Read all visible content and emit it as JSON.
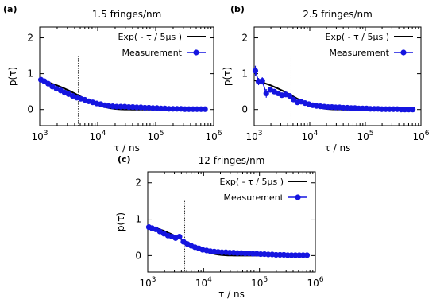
{
  "figure": {
    "chart_data": [
      {
        "type": "scatter",
        "panel_label": "(a)",
        "title": "1.5 fringes/nm",
        "xlabel": "τ / ns",
        "ylabel": "p(τ)",
        "x_scale": "log",
        "xlim": [
          1000,
          1000000
        ],
        "ylim": [
          -0.45,
          2.3
        ],
        "x_ticks": [
          {
            "base": "10",
            "exp": "3"
          },
          {
            "base": "10",
            "exp": "4"
          },
          {
            "base": "10",
            "exp": "5"
          },
          {
            "base": "10",
            "exp": "6"
          }
        ],
        "y_ticks": [
          "0",
          "1",
          "2"
        ],
        "legend_position": "top-right",
        "vline_x": 4600,
        "series": [
          {
            "name": "Exp( - τ / 5μs )",
            "kind": "line",
            "color": "#000000"
          },
          {
            "name": "Measurement",
            "kind": "points",
            "color": "#1515e0",
            "x": [
              1050,
              1200,
              1400,
              1650,
              1950,
              2300,
              2700,
              3150,
              3700,
              4350,
              5100,
              6000,
              7000,
              8200,
              9600,
              11300,
              13200,
              15500,
              18200,
              21300,
              25000,
              29300,
              34400,
              40300,
              47300,
              55500,
              65000,
              76300,
              89400,
              105000,
              123000,
              144000,
              169000,
              198000,
              233000,
              273000,
              320000,
              375000,
              440000,
              516000,
              605000,
              710000
            ],
            "y": [
              0.83,
              0.79,
              0.72,
              0.64,
              0.58,
              0.53,
              0.47,
              0.43,
              0.38,
              0.33,
              0.3,
              0.27,
              0.23,
              0.2,
              0.17,
              0.15,
              0.12,
              0.1,
              0.09,
              0.08,
              0.08,
              0.08,
              0.07,
              0.07,
              0.06,
              0.06,
              0.05,
              0.05,
              0.04,
              0.04,
              0.03,
              0.03,
              0.02,
              0.02,
              0.02,
              0.02,
              0.01,
              0.01,
              0.01,
              0.01,
              0.01,
              0.01
            ]
          }
        ]
      },
      {
        "type": "scatter",
        "panel_label": "(b)",
        "title": "2.5 fringes/nm",
        "xlabel": "τ / ns",
        "ylabel": "p(τ)",
        "x_scale": "log",
        "xlim": [
          1000,
          1000000
        ],
        "ylim": [
          -0.45,
          2.3
        ],
        "x_ticks": [
          {
            "base": "10",
            "exp": "3"
          },
          {
            "base": "10",
            "exp": "4"
          },
          {
            "base": "10",
            "exp": "5"
          },
          {
            "base": "10",
            "exp": "6"
          }
        ],
        "y_ticks": [
          "0",
          "1",
          "2"
        ],
        "legend_position": "top-right",
        "vline_x": 4600,
        "series": [
          {
            "name": "Exp( - τ / 5μs )",
            "kind": "line",
            "color": "#000000"
          },
          {
            "name": "Measurement",
            "kind": "points",
            "color": "#1515e0",
            "x": [
              1050,
              1200,
              1400,
              1650,
              1950,
              2300,
              2700,
              3150,
              3700,
              4350,
              5100,
              6000,
              7000,
              8200,
              9600,
              11300,
              13200,
              15500,
              18200,
              21300,
              25000,
              29300,
              34400,
              40300,
              47300,
              55500,
              65000,
              76300,
              89400,
              105000,
              123000,
              144000,
              169000,
              198000,
              233000,
              273000,
              320000,
              375000,
              440000,
              516000,
              605000,
              710000
            ],
            "y": [
              1.08,
              0.78,
              0.8,
              0.45,
              0.55,
              0.5,
              0.45,
              0.4,
              0.42,
              0.38,
              0.28,
              0.2,
              0.22,
              0.18,
              0.15,
              0.12,
              0.1,
              0.09,
              0.08,
              0.07,
              0.07,
              0.06,
              0.06,
              0.05,
              0.05,
              0.04,
              0.04,
              0.03,
              0.03,
              0.03,
              0.02,
              0.02,
              0.02,
              0.01,
              0.01,
              0.01,
              0.01,
              0.01,
              0.0,
              0.0,
              0.0,
              0.0
            ],
            "err": [
              0.14,
              0.1,
              0.1,
              0.12,
              0.08,
              0.07,
              0.06,
              0.05,
              0.05,
              0.05,
              0.04,
              0.04,
              0.03,
              0.03,
              0.03,
              0.02,
              0.02,
              0.02,
              0.02,
              0.02,
              0.02,
              0.01,
              0.01,
              0.01,
              0.01,
              0.01,
              0.01,
              0.01,
              0.01,
              0.01,
              0.01,
              0.01,
              0.01,
              0.01,
              0.01,
              0.01,
              0.01,
              0.01,
              0.01,
              0.01,
              0.01,
              0.01
            ]
          }
        ]
      },
      {
        "type": "scatter",
        "panel_label": "(c)",
        "title": "12 fringes/nm",
        "xlabel": "τ / ns",
        "ylabel": "p(τ)",
        "x_scale": "log",
        "xlim": [
          1000,
          1000000
        ],
        "ylim": [
          -0.45,
          2.3
        ],
        "x_ticks": [
          {
            "base": "10",
            "exp": "3"
          },
          {
            "base": "10",
            "exp": "4"
          },
          {
            "base": "10",
            "exp": "5"
          },
          {
            "base": "10",
            "exp": "6"
          }
        ],
        "y_ticks": [
          "0",
          "1",
          "2"
        ],
        "legend_position": "top-right",
        "vline_x": 4600,
        "series": [
          {
            "name": "Exp( - τ / 5μs )",
            "kind": "line",
            "color": "#000000"
          },
          {
            "name": "Measurement",
            "kind": "points",
            "color": "#1515e0",
            "x": [
              1050,
              1200,
              1400,
              1650,
              1950,
              2300,
              2700,
              3150,
              3700,
              4350,
              5100,
              6000,
              7000,
              8200,
              9600,
              11300,
              13200,
              15500,
              18200,
              21300,
              25000,
              29300,
              34400,
              40300,
              47300,
              55500,
              65000,
              76300,
              89400,
              105000,
              123000,
              144000,
              169000,
              198000,
              233000,
              273000,
              320000,
              375000,
              440000,
              516000,
              605000,
              710000
            ],
            "y": [
              0.78,
              0.75,
              0.72,
              0.66,
              0.6,
              0.55,
              0.52,
              0.48,
              0.52,
              0.38,
              0.32,
              0.27,
              0.23,
              0.2,
              0.16,
              0.14,
              0.12,
              0.11,
              0.1,
              0.09,
              0.09,
              0.08,
              0.08,
              0.07,
              0.07,
              0.06,
              0.06,
              0.05,
              0.05,
              0.04,
              0.04,
              0.03,
              0.03,
              0.02,
              0.02,
              0.02,
              0.01,
              0.01,
              0.01,
              0.01,
              0.01,
              0.01
            ]
          }
        ]
      }
    ]
  }
}
